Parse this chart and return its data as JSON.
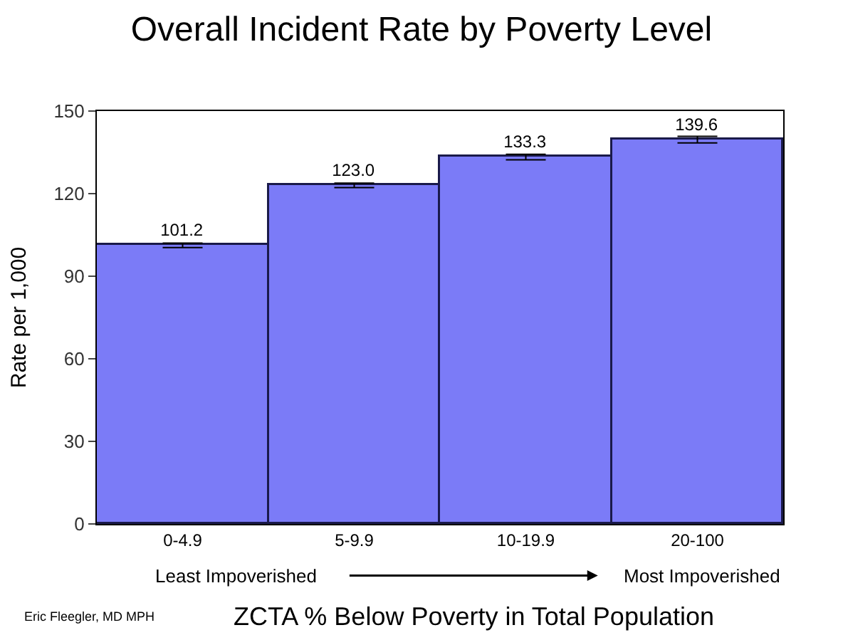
{
  "chart_data": {
    "type": "bar",
    "title": "Overall Incident Rate by Poverty Level",
    "xlabel": "ZCTA % Below Poverty in Total Population",
    "ylabel": "Rate per 1,000",
    "categories": [
      "0-4.9",
      "5-9.9",
      "10-19.9",
      "20-100"
    ],
    "values": [
      101.2,
      123.0,
      133.3,
      139.6
    ],
    "errors": [
      0.8,
      0.8,
      1.0,
      1.2
    ],
    "color": "#7b7bf7",
    "value_labels": [
      "101.2",
      "123.0",
      "133.3",
      "139.6"
    ],
    "ylim": [
      0,
      150
    ],
    "yticks": [
      0,
      30,
      60,
      90,
      120,
      150
    ],
    "annotations": [
      "Least Impoverished",
      "Most Impoverished",
      "Eric Fleegler, MD MPH"
    ]
  }
}
